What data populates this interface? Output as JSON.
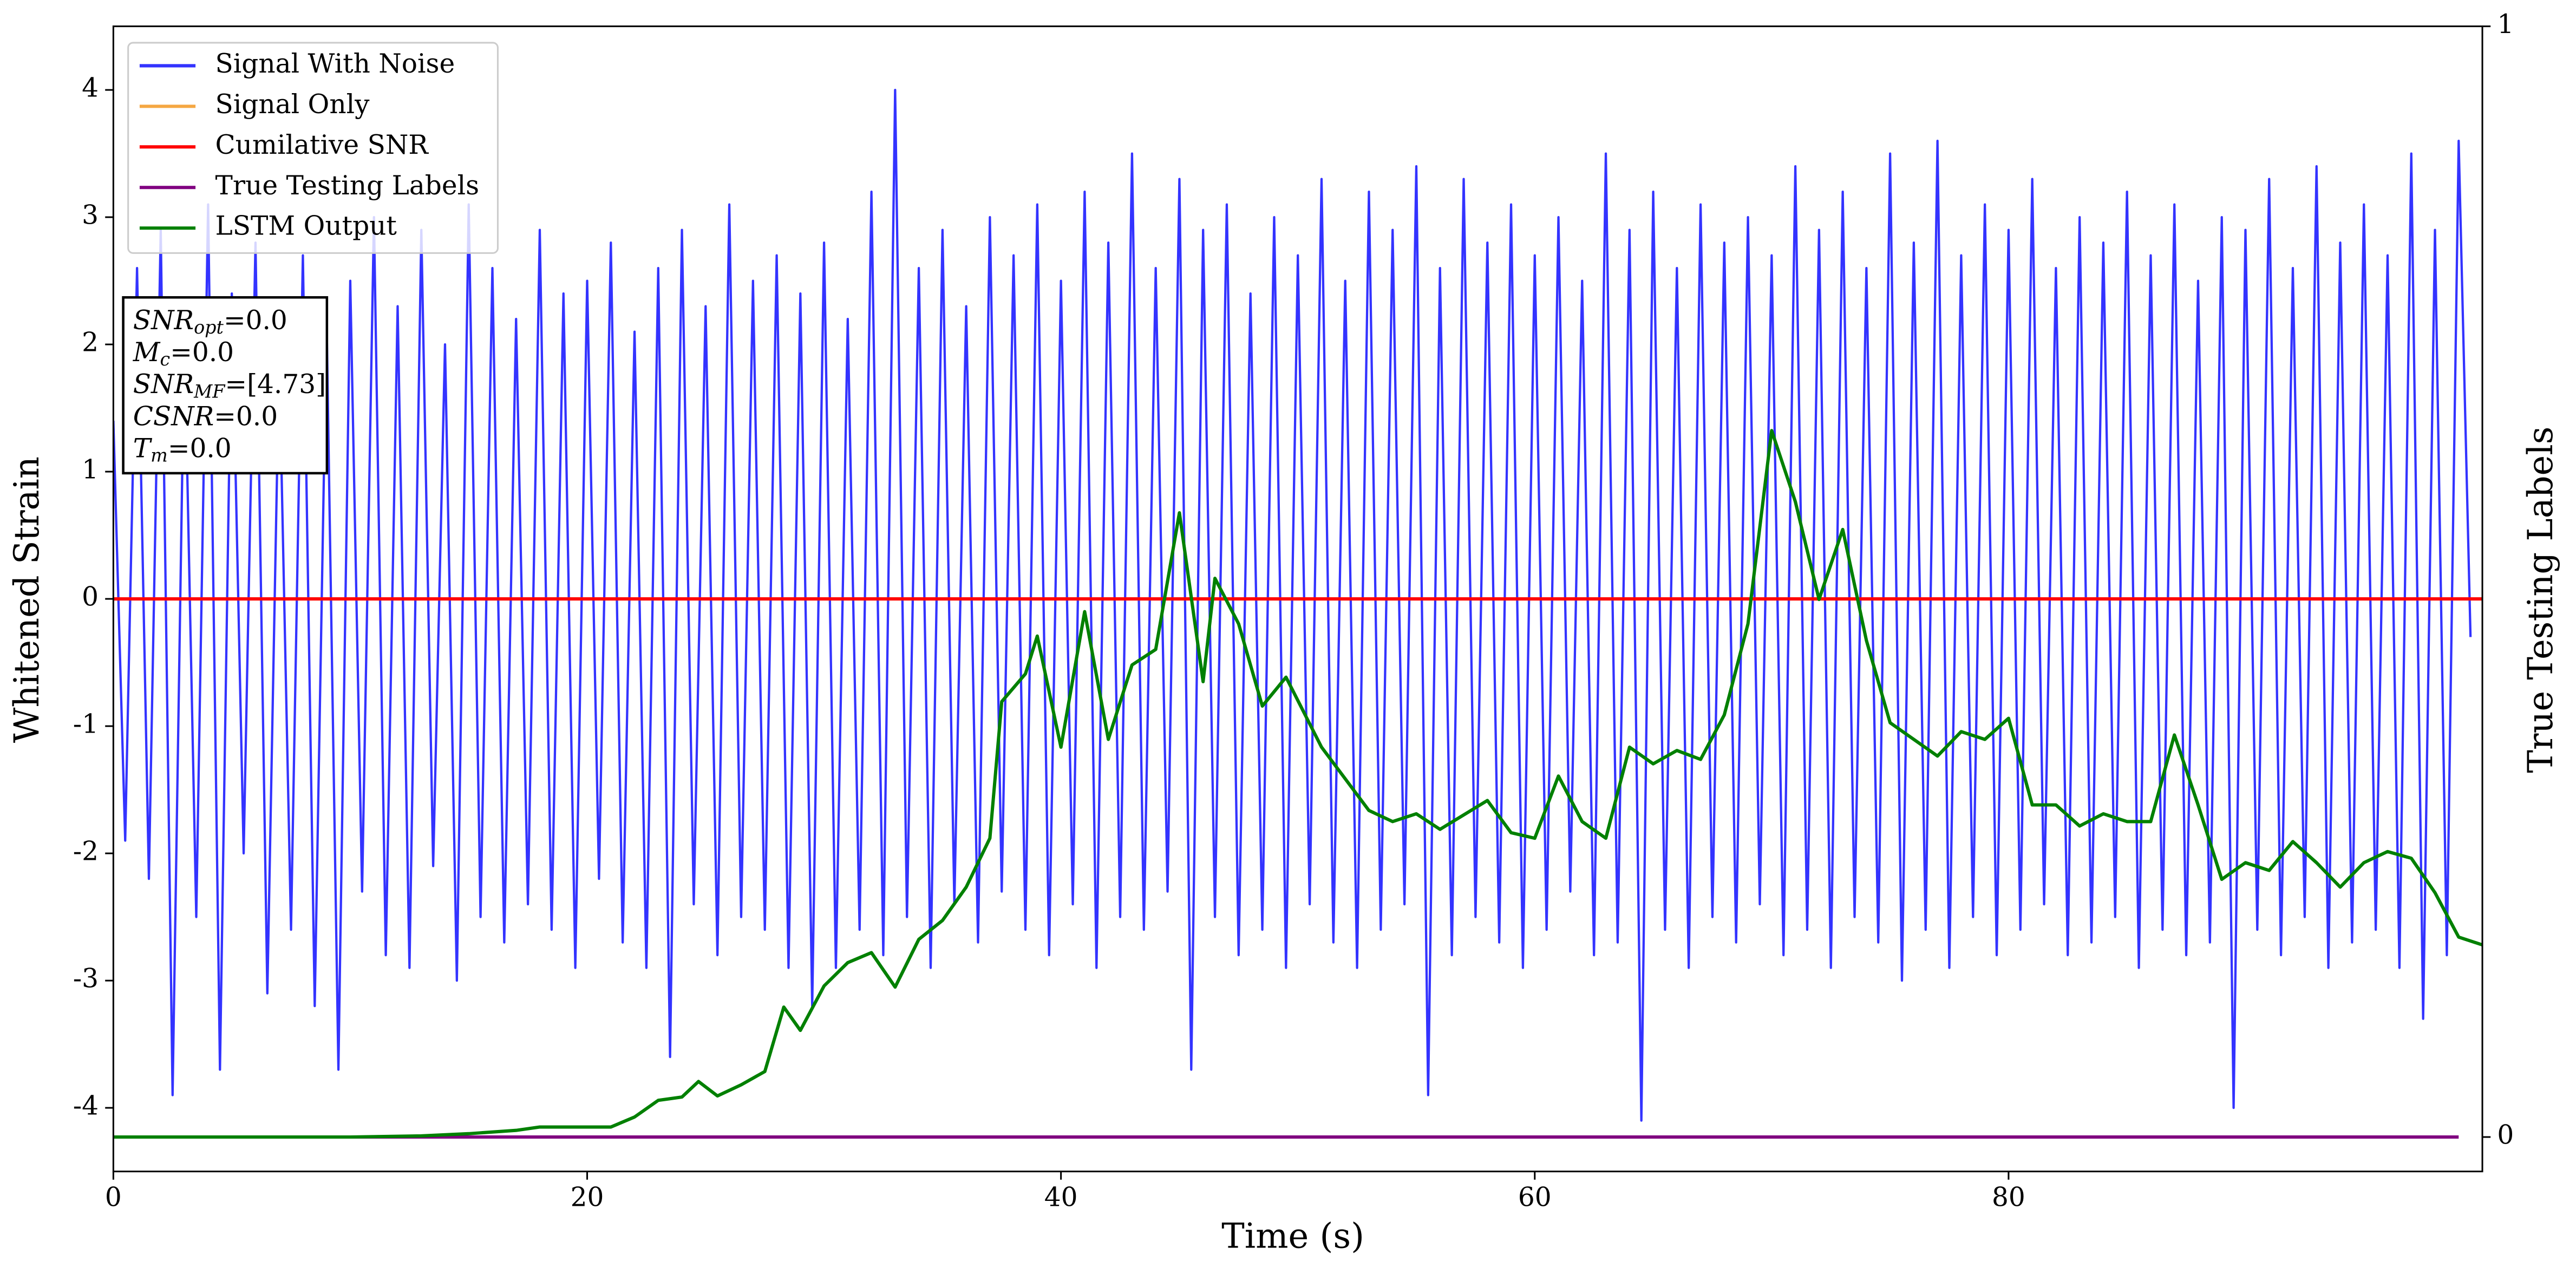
{
  "chart_data": {
    "type": "line",
    "xlabel": "Time (s)",
    "ylabel": "Whitened Strain",
    "y2label": "True Testing Labels",
    "xlim": [
      0,
      100
    ],
    "xticks": [
      0,
      20,
      40,
      60,
      80
    ],
    "ylim": [
      -4.5,
      4.5
    ],
    "yticks": [
      -4,
      -3,
      -2,
      -1,
      0,
      1,
      2,
      3,
      4
    ],
    "y2lim": [
      -0.031,
      1
    ],
    "y2ticks": [
      0,
      1
    ],
    "legend": "upper left",
    "annotation_box": [
      {
        "text": "SNR",
        "sub": "opt",
        "rest": "=0.0"
      },
      {
        "text": "M",
        "sub": "c",
        "rest": "=0.0"
      },
      {
        "text": "SNR",
        "sub": "MF",
        "rest": "=[4.73]"
      },
      {
        "text": "CSNR",
        "rest": "=0.0"
      },
      {
        "text": "T",
        "sub": "m",
        "rest": "=0.0"
      }
    ],
    "series": [
      {
        "name": "Signal With Noise",
        "color": "#3333ff",
        "axis": "y",
        "x": [
          0,
          0.5,
          1,
          1.5,
          2,
          2.5,
          3,
          3.5,
          4,
          4.5,
          5,
          5.5,
          6,
          6.5,
          7,
          7.5,
          8,
          8.5,
          9,
          9.5,
          10,
          10.5,
          11,
          11.5,
          12,
          12.5,
          13,
          13.5,
          14,
          14.5,
          15,
          15.5,
          16,
          16.5,
          17,
          17.5,
          18,
          18.5,
          19,
          19.5,
          20,
          20.5,
          21,
          21.5,
          22,
          22.5,
          23,
          23.5,
          24,
          24.5,
          25,
          25.5,
          26,
          26.5,
          27,
          27.5,
          28,
          28.5,
          29,
          29.5,
          30,
          30.5,
          31,
          31.5,
          32,
          32.5,
          33,
          33.5,
          34,
          34.5,
          35,
          35.5,
          36,
          36.5,
          37,
          37.5,
          38,
          38.5,
          39,
          39.5,
          40,
          40.5,
          41,
          41.5,
          42,
          42.5,
          43,
          43.5,
          44,
          44.5,
          45,
          45.5,
          46,
          46.5,
          47,
          47.5,
          48,
          48.5,
          49,
          49.5,
          50,
          50.5,
          51,
          51.5,
          52,
          52.5,
          53,
          53.5,
          54,
          54.5,
          55,
          55.5,
          56,
          56.5,
          57,
          57.5,
          58,
          58.5,
          59,
          59.5,
          60,
          60.5,
          61,
          61.5,
          62,
          62.5,
          63,
          63.5,
          64,
          64.5,
          65,
          65.5,
          66,
          66.5,
          67,
          67.5,
          68,
          68.5,
          69,
          69.5,
          70,
          70.5,
          71,
          71.5,
          72,
          72.5,
          73,
          73.5,
          74,
          74.5,
          75,
          75.5,
          76,
          76.5,
          77,
          77.5,
          78,
          78.5,
          79,
          79.5,
          80,
          80.5,
          81,
          81.5,
          82,
          82.5,
          83,
          83.5,
          84,
          84.5,
          85,
          85.5,
          86,
          86.5,
          87,
          87.5,
          88,
          88.5,
          89,
          89.5,
          90,
          90.5,
          91,
          91.5,
          92,
          92.5,
          93,
          93.5,
          94,
          94.5,
          95,
          95.5,
          96,
          96.5,
          97,
          97.5,
          98,
          98.5,
          99,
          99.5
        ],
        "values": [
          1.4,
          -1.9,
          2.6,
          -2.2,
          2.9,
          -3.9,
          2.1,
          -2.5,
          3.1,
          -3.7,
          2.4,
          -2.0,
          2.8,
          -3.1,
          1.9,
          -2.6,
          2.7,
          -3.2,
          2.2,
          -3.7,
          2.5,
          -2.3,
          3.0,
          -2.8,
          2.3,
          -2.9,
          2.9,
          -2.1,
          2.0,
          -3.0,
          3.1,
          -2.5,
          2.6,
          -2.7,
          2.2,
          -2.4,
          2.9,
          -2.6,
          2.4,
          -2.9,
          2.5,
          -2.2,
          2.8,
          -2.7,
          2.1,
          -2.9,
          2.6,
          -3.6,
          2.9,
          -2.4,
          2.3,
          -2.8,
          3.1,
          -2.5,
          2.5,
          -2.6,
          2.7,
          -2.9,
          2.4,
          -3.2,
          2.8,
          -2.9,
          2.2,
          -2.6,
          3.2,
          -2.8,
          4.0,
          -2.5,
          2.6,
          -2.9,
          2.9,
          -2.4,
          2.3,
          -2.7,
          3.0,
          -2.3,
          2.7,
          -2.6,
          3.1,
          -2.8,
          2.5,
          -2.4,
          3.2,
          -2.9,
          2.8,
          -2.5,
          3.5,
          -2.6,
          2.6,
          -2.3,
          3.3,
          -3.7,
          2.9,
          -2.5,
          3.1,
          -2.8,
          2.4,
          -2.6,
          3.0,
          -2.9,
          2.7,
          -2.4,
          3.3,
          -2.7,
          2.5,
          -2.9,
          3.2,
          -2.6,
          2.9,
          -2.4,
          3.4,
          -3.9,
          2.6,
          -2.8,
          3.3,
          -2.5,
          2.8,
          -2.7,
          3.1,
          -2.9,
          2.7,
          -2.6,
          3.0,
          -2.3,
          2.5,
          -2.8,
          3.5,
          -2.7,
          2.9,
          -4.1,
          3.2,
          -2.6,
          2.6,
          -2.9,
          3.1,
          -2.5,
          2.8,
          -2.7,
          3.0,
          -2.4,
          2.7,
          -2.8,
          3.4,
          -2.6,
          2.9,
          -2.9,
          3.2,
          -2.5,
          2.6,
          -2.7,
          3.5,
          -3.0,
          2.8,
          -2.6,
          3.6,
          -2.9,
          2.7,
          -2.5,
          3.1,
          -2.8,
          2.9,
          -2.6,
          3.3,
          -2.4,
          2.6,
          -2.8,
          3.0,
          -2.7,
          2.8,
          -2.5,
          3.2,
          -2.9,
          2.7,
          -2.6,
          3.1,
          -2.8,
          2.5,
          -2.7,
          3.0,
          -4.0,
          2.9,
          -2.6,
          3.3,
          -2.8,
          2.6,
          -2.5,
          3.4,
          -2.9,
          2.8,
          -2.7,
          3.1,
          -2.6,
          2.7,
          -2.9,
          3.5,
          -3.3,
          2.9,
          -2.8,
          3.6,
          -0.3
        ]
      },
      {
        "name": "Signal Only",
        "color": "#f5a742",
        "axis": "y",
        "x": [
          0,
          100
        ],
        "values": [
          0,
          0
        ]
      },
      {
        "name": "Cumilative SNR",
        "color": "#ff0000",
        "axis": "y",
        "x": [
          0,
          100
        ],
        "values": [
          0,
          0
        ]
      },
      {
        "name": "True Testing Labels",
        "color": "#800080",
        "axis": "y2",
        "x": [
          0,
          99
        ],
        "values": [
          0,
          0
        ]
      },
      {
        "name": "LSTM Output",
        "color": "#008000",
        "axis": "y2",
        "x": [
          0,
          10,
          13,
          15,
          17,
          18,
          19,
          20,
          21,
          22,
          23,
          24,
          24.7,
          25.5,
          26.5,
          27.5,
          28.3,
          29,
          30,
          31,
          32,
          33,
          34,
          35,
          36,
          37,
          37.5,
          38.5,
          39,
          40,
          41,
          42,
          43,
          44,
          45,
          46,
          46.5,
          47.5,
          48.5,
          49.5,
          51,
          53,
          54,
          55,
          56,
          57,
          58,
          59,
          60,
          61,
          62,
          63,
          64,
          65,
          66,
          67,
          68,
          69,
          70,
          71,
          72,
          73,
          74,
          75,
          76,
          77,
          78,
          79,
          80,
          81,
          82,
          83,
          84,
          85,
          86,
          87,
          88,
          89,
          90,
          91,
          92,
          93,
          94,
          95,
          96,
          97,
          98,
          99,
          100
        ],
        "values": [
          0,
          0,
          0.001,
          0.003,
          0.006,
          0.009,
          0.009,
          0.009,
          0.009,
          0.018,
          0.033,
          0.036,
          0.05,
          0.037,
          0.047,
          0.059,
          0.117,
          0.096,
          0.136,
          0.157,
          0.166,
          0.135,
          0.178,
          0.195,
          0.225,
          0.269,
          0.392,
          0.417,
          0.451,
          0.351,
          0.473,
          0.358,
          0.425,
          0.439,
          0.562,
          0.41,
          0.503,
          0.462,
          0.388,
          0.414,
          0.351,
          0.294,
          0.284,
          0.291,
          0.277,
          0.29,
          0.303,
          0.274,
          0.269,
          0.325,
          0.284,
          0.269,
          0.351,
          0.336,
          0.348,
          0.34,
          0.38,
          0.462,
          0.636,
          0.572,
          0.484,
          0.547,
          0.447,
          0.373,
          0.358,
          0.343,
          0.365,
          0.358,
          0.377,
          0.299,
          0.299,
          0.28,
          0.291,
          0.284,
          0.284,
          0.362,
          0.299,
          0.232,
          0.247,
          0.24,
          0.266,
          0.247,
          0.225,
          0.247,
          0.257,
          0.251,
          0.22,
          0.18,
          0.173
        ]
      }
    ]
  }
}
